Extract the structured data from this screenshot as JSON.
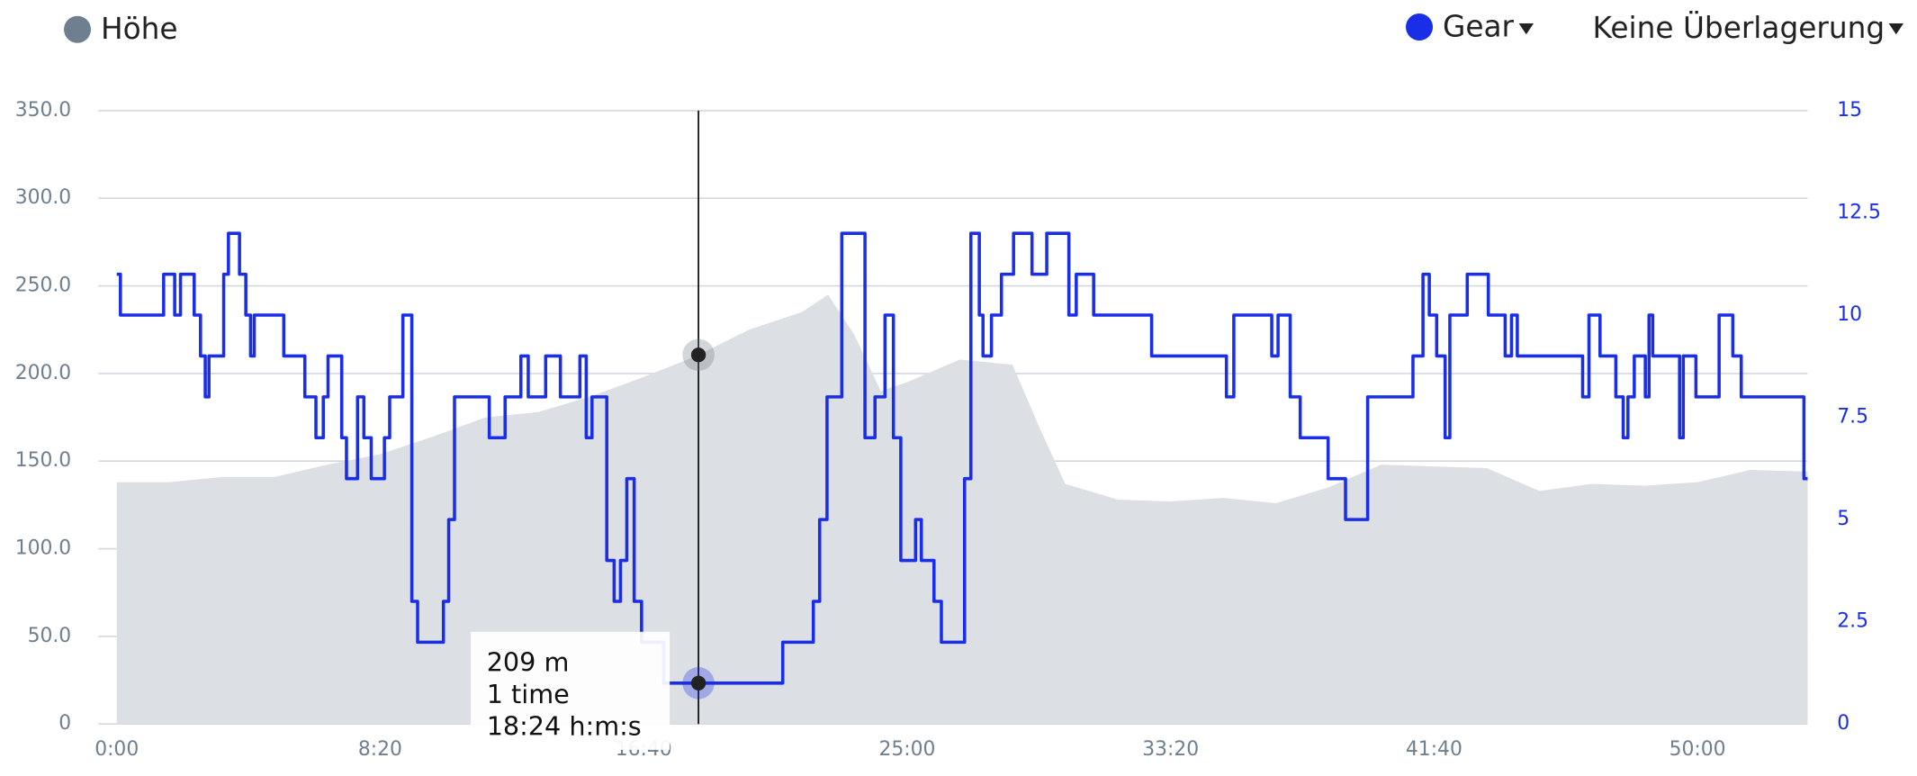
{
  "chart_data": {
    "type": "line",
    "xlim": [
      0,
      3209
    ],
    "xticks": [
      {
        "value": 0,
        "label": "0:00"
      },
      {
        "value": 500,
        "label": "8:20"
      },
      {
        "value": 1000,
        "label": "16:40"
      },
      {
        "value": 1500,
        "label": "25:00"
      },
      {
        "value": 2000,
        "label": "33:20"
      },
      {
        "value": 2500,
        "label": "41:40"
      },
      {
        "value": 3000,
        "label": "50:00"
      }
    ],
    "ylim": [
      0,
      350
    ],
    "yticks": [
      0,
      {
        "value": 50,
        "label": "50.0"
      },
      {
        "value": 100,
        "label": "100.0"
      },
      {
        "value": 150,
        "label": "150.0"
      },
      {
        "value": 200,
        "label": "200.0"
      },
      {
        "value": 250,
        "label": "250.0"
      },
      {
        "value": 300,
        "label": "300.0"
      },
      {
        "value": 350,
        "label": "350.0"
      }
    ],
    "y2lim": [
      0,
      15
    ],
    "y2ticks": [
      0,
      2.5,
      5,
      7.5,
      10,
      12.5,
      15
    ],
    "grid": true,
    "overlay_menu": "Keine Überlagerung",
    "series": [
      {
        "name": "Höhe",
        "color": "#dcdfe3",
        "legend_color": "#6e7f8f",
        "style": "area",
        "x": [
          0,
          100,
          200,
          300,
          400,
          500,
          600,
          700,
          800,
          900,
          1000,
          1100,
          1200,
          1300,
          1350,
          1400,
          1450,
          1500,
          1600,
          1700,
          1750,
          1800,
          1900,
          2000,
          2100,
          2200,
          2300,
          2400,
          2500,
          2600,
          2700,
          2800,
          2900,
          3000,
          3100,
          3209
        ],
        "values": [
          138,
          138,
          141,
          141,
          148,
          154,
          164,
          175,
          178,
          187,
          198,
          210,
          225,
          235,
          245,
          222,
          190,
          195,
          208,
          205,
          170,
          137,
          128,
          127,
          129,
          126,
          135,
          148,
          147,
          146,
          133,
          137,
          136,
          138,
          145,
          144
        ]
      },
      {
        "name": "Gear",
        "color": "#1a2ee8",
        "style": "step",
        "axis": "y2",
        "x": [
          0,
          7,
          89,
          110,
          121,
          147,
          159,
          168,
          175,
          203,
          212,
          233,
          245,
          254,
          261,
          317,
          357,
          378,
          392,
          401,
          427,
          436,
          457,
          469,
          483,
          508,
          518,
          543,
          560,
          571,
          620,
          630,
          641,
          707,
          737,
          767,
          781,
          814,
          842,
          879,
          891,
          902,
          930,
          944,
          956,
          968,
          982,
          996,
          1038,
          1264,
          1322,
          1334,
          1348,
          1376,
          1420,
          1439,
          1458,
          1474,
          1488,
          1516,
          1527,
          1551,
          1565,
          1609,
          1621,
          1637,
          1644,
          1660,
          1679,
          1702,
          1737,
          1765,
          1807,
          1821,
          1854,
          1964,
          2106,
          2120,
          2192,
          2204,
          2227,
          2246,
          2299,
          2332,
          2374,
          2460,
          2479,
          2491,
          2505,
          2521,
          2530,
          2563,
          2603,
          2635,
          2647,
          2658,
          2782,
          2794,
          2815,
          2845,
          2859,
          2868,
          2880,
          2901,
          2908,
          2915,
          2966,
          2973,
          2997,
          3041,
          3067,
          3083,
          3202,
          3209
        ],
        "values": [
          11,
          10,
          11,
          10,
          11,
          10,
          9,
          8,
          9,
          11,
          12,
          11,
          10,
          9,
          10,
          9,
          8,
          7,
          8,
          9,
          7,
          6,
          8,
          7,
          6,
          7,
          8,
          10,
          3,
          2,
          3,
          5,
          8,
          7,
          8,
          9,
          8,
          9,
          8,
          9,
          7,
          8,
          4,
          3,
          4,
          6,
          3,
          2,
          1,
          2,
          3,
          5,
          8,
          12,
          7,
          8,
          10,
          7,
          4,
          5,
          4,
          3,
          2,
          6,
          12,
          10,
          9,
          10,
          11,
          12,
          11,
          12,
          10,
          11,
          10,
          9,
          8,
          10,
          9,
          10,
          8,
          7,
          6,
          5,
          8,
          9,
          11,
          10,
          9,
          7,
          10,
          11,
          10,
          9,
          10,
          9,
          8,
          10,
          9,
          8,
          7,
          8,
          9,
          8,
          10,
          9,
          7,
          9,
          8,
          10,
          9,
          8,
          6,
          6
        ]
      }
    ],
    "tooltip": {
      "x": 1104,
      "lines": [
        "209 m",
        "1 time",
        "18:24 h:m:s"
      ]
    }
  }
}
